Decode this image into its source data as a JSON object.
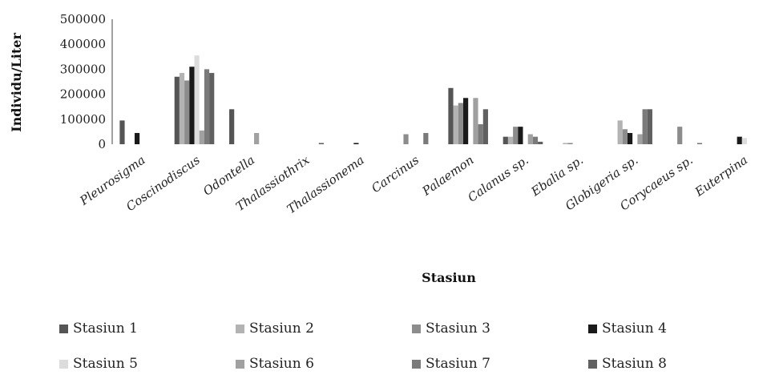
{
  "chart_data": {
    "type": "bar",
    "title": "",
    "xlabel": "Stasiun",
    "ylabel": "Individu/Liter",
    "ylim": [
      0,
      500000
    ],
    "yticks": [
      0,
      100000,
      200000,
      300000,
      400000,
      500000
    ],
    "ytick_labels": [
      "0",
      "100000",
      "200000",
      "300000",
      "400000",
      "500000"
    ],
    "grid": false,
    "legend_position": "bottom",
    "categories": [
      "Pleurosigma",
      "Coscinodiscus",
      "Odontella",
      "Thalassiothrix",
      "Thalassionema",
      "Carcinus",
      "Palaemon",
      "Calanus sp.",
      "Ebalia sp.",
      "Globigeria sp.",
      "Corycaeus sp.",
      "Euterpina"
    ],
    "series": [
      {
        "name": "Stasiun 1",
        "color": "#555555",
        "values": [
          95000,
          270000,
          140000,
          0,
          0,
          0,
          225000,
          30000,
          0,
          0,
          0,
          0
        ]
      },
      {
        "name": "Stasiun 2",
        "color": "#b3b3b3",
        "values": [
          0,
          285000,
          0,
          0,
          0,
          0,
          155000,
          30000,
          5000,
          95000,
          0,
          0
        ]
      },
      {
        "name": "Stasiun 3",
        "color": "#8c8c8c",
        "values": [
          0,
          255000,
          0,
          0,
          0,
          40000,
          165000,
          70000,
          5000,
          60000,
          70000,
          0
        ]
      },
      {
        "name": "Stasiun 4",
        "color": "#1a1a1a",
        "values": [
          45000,
          310000,
          0,
          0,
          5000,
          0,
          185000,
          70000,
          0,
          45000,
          0,
          30000
        ]
      },
      {
        "name": "Stasiun 5",
        "color": "#dcdcdc",
        "values": [
          0,
          355000,
          0,
          0,
          0,
          0,
          0,
          0,
          0,
          0,
          0,
          25000
        ]
      },
      {
        "name": "Stasiun 6",
        "color": "#a0a0a0",
        "values": [
          0,
          55000,
          45000,
          0,
          0,
          0,
          185000,
          40000,
          0,
          40000,
          0,
          0
        ]
      },
      {
        "name": "Stasiun 7",
        "color": "#7a7a7a",
        "values": [
          0,
          300000,
          0,
          0,
          0,
          45000,
          80000,
          30000,
          0,
          140000,
          5000,
          0
        ]
      },
      {
        "name": "Stasiun 8",
        "color": "#606060",
        "values": [
          0,
          285000,
          0,
          5000,
          0,
          0,
          140000,
          10000,
          0,
          140000,
          0,
          0
        ]
      }
    ]
  }
}
